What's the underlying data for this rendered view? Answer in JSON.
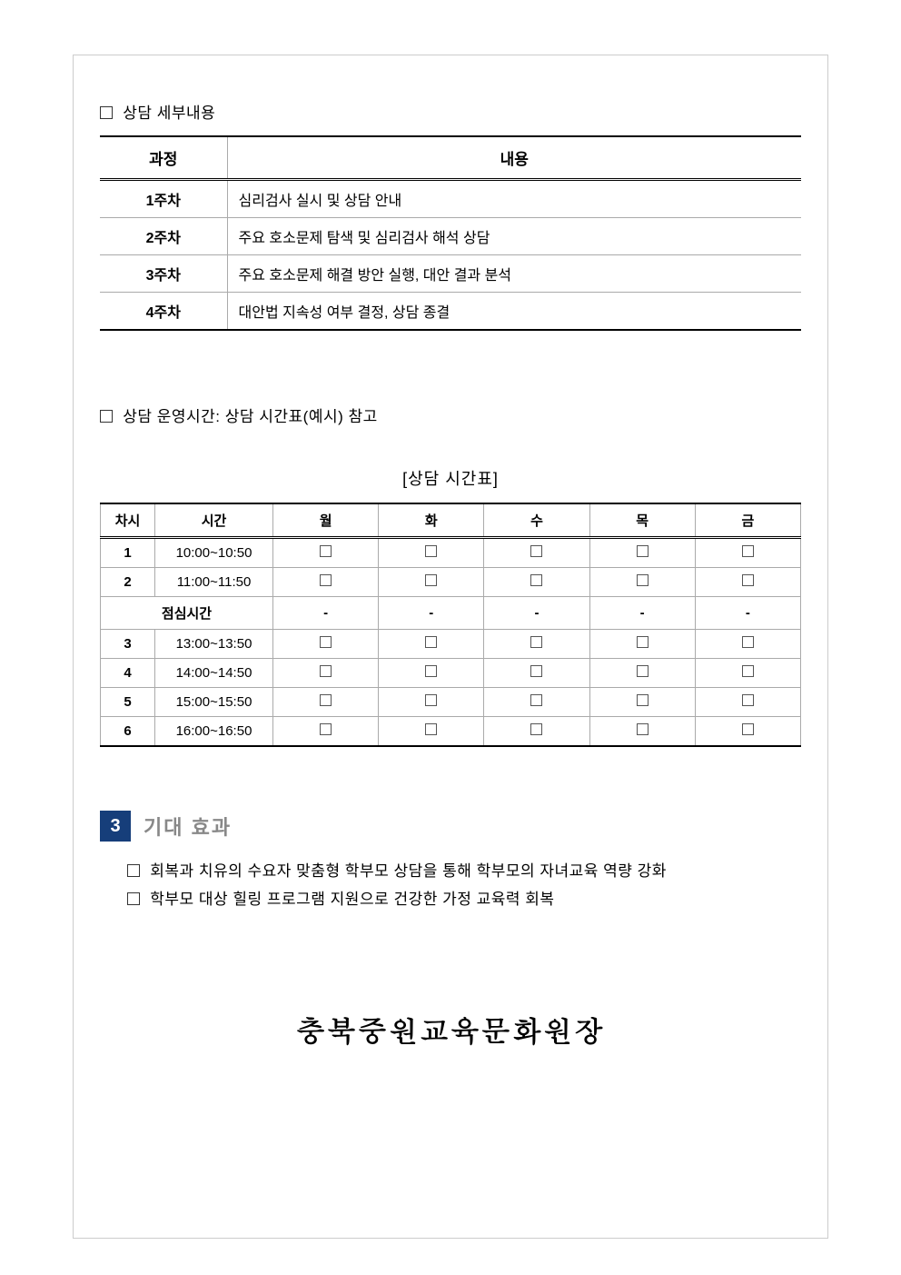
{
  "section1": {
    "label": "상담 세부내용"
  },
  "table1": {
    "header_col1": "과정",
    "header_col2": "내용",
    "rows": [
      {
        "week": "1주차",
        "content": "심리검사 실시 및 상담 안내"
      },
      {
        "week": "2주차",
        "content": "주요 호소문제 탐색 및 심리검사 해석 상담"
      },
      {
        "week": "3주차",
        "content": "주요 호소문제 해결 방안 실행, 대안 결과 분석"
      },
      {
        "week": "4주차",
        "content": "대안법 지속성 여부 결정, 상담 종결"
      }
    ]
  },
  "section2": {
    "label": "상담 운영시간: 상담 시간표(예시) 참고",
    "schedule_title": "[상담 시간표]"
  },
  "table2": {
    "headers": {
      "session": "차시",
      "time": "시간",
      "mon": "월",
      "tue": "화",
      "wed": "수",
      "thu": "목",
      "fri": "금"
    },
    "rows": [
      {
        "session": "1",
        "time": "10:00~10:50",
        "type": "slot"
      },
      {
        "session": "2",
        "time": "11:00~11:50",
        "type": "slot"
      }
    ],
    "lunch": {
      "label": "점심시간",
      "dash": "-"
    },
    "rows2": [
      {
        "session": "3",
        "time": "13:00~13:50",
        "type": "slot"
      },
      {
        "session": "4",
        "time": "14:00~14:50",
        "type": "slot"
      },
      {
        "session": "5",
        "time": "15:00~15:50",
        "type": "slot"
      },
      {
        "session": "6",
        "time": "16:00~16:50",
        "type": "slot"
      }
    ]
  },
  "section3": {
    "number": "3",
    "title": "기대 효과",
    "bullets": [
      "회복과 치유의 수요자 맞춤형 학부모 상담을 통해 학부모의 자녀교육 역량 강화",
      "학부모 대상 힐링 프로그램 지원으로 건강한 가정 교육력 회복"
    ]
  },
  "footer": {
    "title": "충북중원교육문화원장"
  }
}
